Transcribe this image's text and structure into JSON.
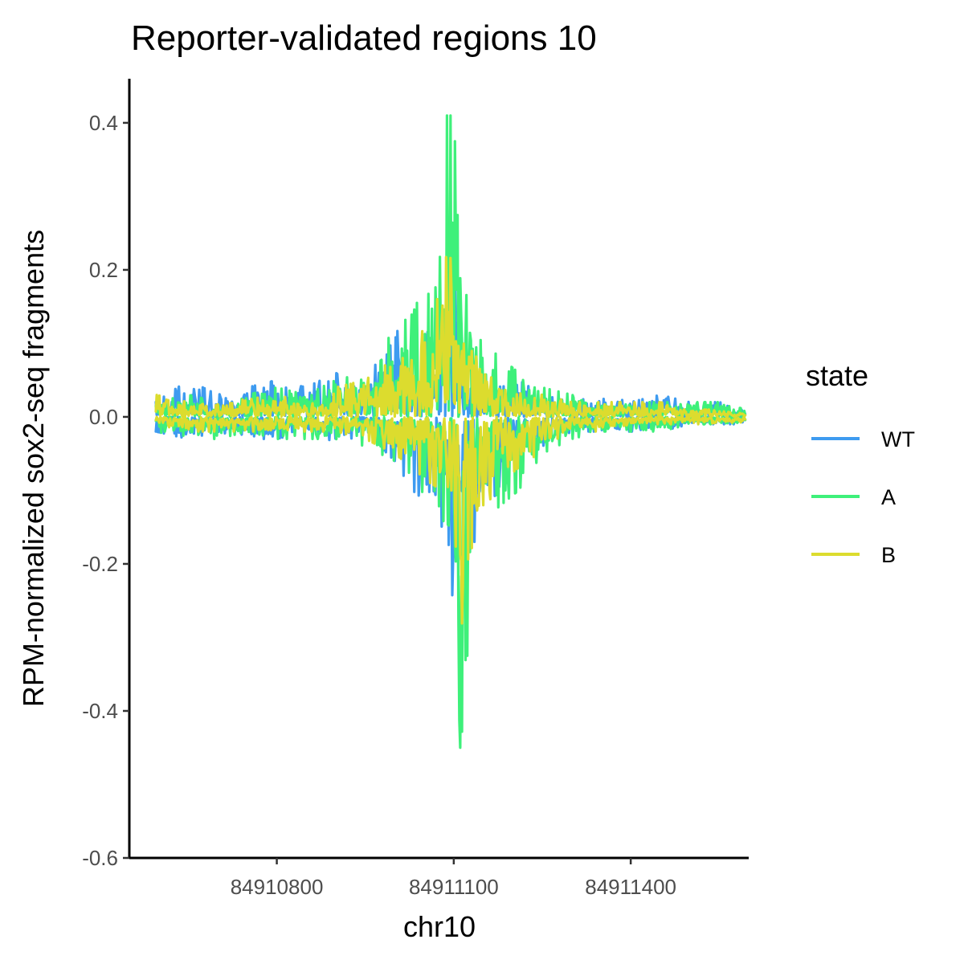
{
  "chart_data": {
    "type": "line",
    "title": "Reporter-validated regions 10",
    "xlabel": "chr10",
    "ylabel": "RPM-normalized sox2-seq fragments",
    "xlim": [
      84910550,
      84911600
    ],
    "ylim": [
      -0.6,
      0.46
    ],
    "x_ticks": [
      84910800,
      84911100,
      84911400
    ],
    "x_tick_labels": [
      "84910800",
      "84911100",
      "84911400"
    ],
    "y_ticks": [
      -0.6,
      -0.4,
      -0.2,
      0.0,
      0.2,
      0.4
    ],
    "y_tick_labels": [
      "-0.6",
      "-0.4",
      "-0.2",
      "0.0",
      "0.2",
      "0.4"
    ],
    "grid": false,
    "legend": {
      "title": "state",
      "position": "right"
    },
    "series": [
      {
        "name": "WT",
        "color": "#3e9bf0",
        "x": [
          84910595,
          84910650,
          84910700,
          84910750,
          84910800,
          84910850,
          84910900,
          84910950,
          84911000,
          84911030,
          84911060,
          84911080,
          84911095,
          84911105,
          84911115,
          84911130,
          84911150,
          84911180,
          84911210,
          84911250,
          84911300,
          84911350,
          84911400,
          84911450,
          84911500,
          84911550,
          84911595
        ],
        "values": [
          0.02,
          0.05,
          0.03,
          0.04,
          0.05,
          0.04,
          0.06,
          0.03,
          0.15,
          0.09,
          0.12,
          0.16,
          0.3,
          0.32,
          0.08,
          0.05,
          0.06,
          0.04,
          0.05,
          0.03,
          0.02,
          0.03,
          0.02,
          0.03,
          0.02,
          0.02,
          0.01
        ],
        "neg_values": [
          -0.02,
          -0.03,
          -0.02,
          -0.03,
          -0.03,
          -0.02,
          -0.04,
          -0.02,
          -0.06,
          -0.1,
          -0.12,
          -0.15,
          -0.24,
          -0.25,
          -0.2,
          -0.18,
          -0.14,
          -0.09,
          -0.06,
          -0.04,
          -0.02,
          -0.02,
          -0.02,
          -0.02,
          -0.01,
          -0.01,
          -0.01
        ]
      },
      {
        "name": "A",
        "color": "#3ef07a",
        "x": [
          84910595,
          84910650,
          84910700,
          84910750,
          84910800,
          84910850,
          84910900,
          84910950,
          84911000,
          84911030,
          84911060,
          84911080,
          84911095,
          84911105,
          84911115,
          84911130,
          84911150,
          84911180,
          84911210,
          84911250,
          84911300,
          84911350,
          84911400,
          84911450,
          84911500,
          84911550,
          84911595
        ],
        "values": [
          0.02,
          0.03,
          0.02,
          0.03,
          0.04,
          0.03,
          0.05,
          0.06,
          0.12,
          0.14,
          0.2,
          0.41,
          0.41,
          0.36,
          0.25,
          0.12,
          0.1,
          0.08,
          0.06,
          0.04,
          0.03,
          0.02,
          0.02,
          0.02,
          0.02,
          0.02,
          0.01
        ],
        "neg_values": [
          -0.02,
          -0.03,
          -0.03,
          -0.02,
          -0.03,
          -0.03,
          -0.03,
          -0.04,
          -0.06,
          -0.08,
          -0.12,
          -0.14,
          -0.15,
          -0.3,
          -0.55,
          -0.2,
          -0.14,
          -0.12,
          -0.1,
          -0.05,
          -0.03,
          -0.02,
          -0.02,
          -0.02,
          -0.01,
          -0.01,
          -0.01
        ]
      },
      {
        "name": "B",
        "color": "#dcdc2e",
        "x": [
          84910595,
          84910650,
          84910700,
          84910750,
          84910800,
          84910850,
          84910900,
          84910950,
          84911000,
          84911030,
          84911060,
          84911080,
          84911095,
          84911105,
          84911115,
          84911130,
          84911150,
          84911180,
          84911210,
          84911250,
          84911300,
          84911350,
          84911400,
          84911450,
          84911500,
          84911550,
          84911595
        ],
        "values": [
          0.03,
          0.02,
          0.02,
          0.03,
          0.03,
          0.02,
          0.04,
          0.05,
          0.08,
          0.1,
          0.13,
          0.18,
          0.26,
          0.15,
          0.12,
          0.09,
          0.07,
          0.05,
          0.04,
          0.03,
          0.02,
          0.02,
          0.02,
          0.02,
          0.01,
          0.01,
          0.01
        ],
        "neg_values": [
          -0.01,
          -0.02,
          -0.02,
          -0.02,
          -0.02,
          -0.02,
          -0.02,
          -0.03,
          -0.05,
          -0.07,
          -0.09,
          -0.1,
          -0.12,
          -0.22,
          -0.33,
          -0.18,
          -0.12,
          -0.1,
          -0.08,
          -0.04,
          -0.02,
          -0.02,
          -0.01,
          -0.01,
          -0.01,
          -0.01,
          -0.01
        ]
      }
    ]
  }
}
